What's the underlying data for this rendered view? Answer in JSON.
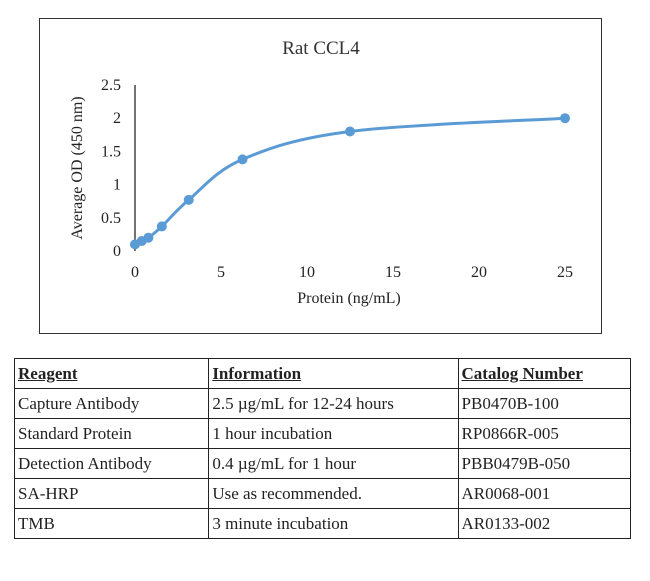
{
  "chart_data": {
    "type": "scatter",
    "title": "Rat CCL4",
    "xlabel": "Protein (ng/mL)",
    "ylabel": "Average OD (450 nm)",
    "xlim": [
      0,
      25
    ],
    "ylim": [
      0,
      2.5
    ],
    "xticks": [
      0,
      5,
      10,
      15,
      20,
      25
    ],
    "yticks": [
      0,
      0.5,
      1,
      1.5,
      2,
      2.5
    ],
    "x": [
      0,
      0.39,
      0.78,
      1.56,
      3.125,
      6.25,
      12.5,
      25
    ],
    "y": [
      0.1,
      0.15,
      0.2,
      0.37,
      0.77,
      1.38,
      1.8,
      2.0
    ],
    "grid": false,
    "legend": "none",
    "trendline": "smooth",
    "color": "#5b9bd5"
  },
  "table": {
    "headers": [
      "Reagent",
      "Information",
      "Catalog Number"
    ],
    "rows": [
      [
        "Capture Antibody",
        "2.5 µg/mL for 12-24 hours",
        "PB0470B-100"
      ],
      [
        "Standard Protein",
        "1 hour incubation",
        "RP0866R-005"
      ],
      [
        "Detection Antibody",
        "0.4 µg/mL for 1 hour",
        "PBB0479B-050"
      ],
      [
        "SA-HRP",
        "Use as recommended.",
        "AR0068-001"
      ],
      [
        "TMB",
        "3 minute incubation",
        "AR0133-002"
      ]
    ]
  }
}
